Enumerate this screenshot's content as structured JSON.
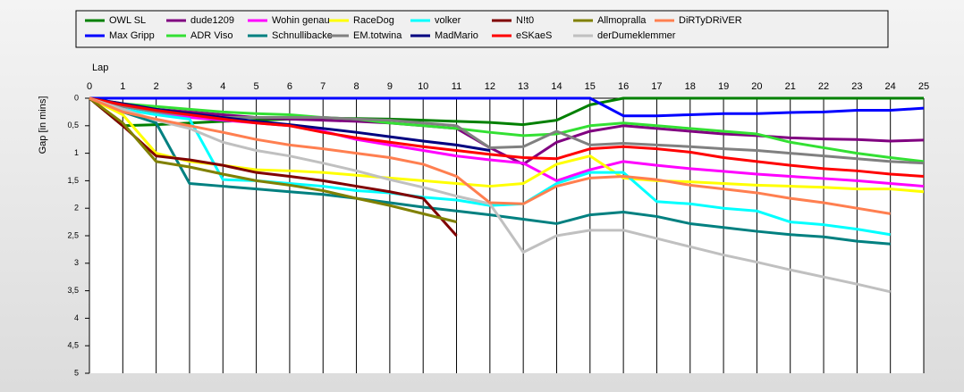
{
  "chart_data": {
    "type": "line",
    "xlabel": "Lap",
    "ylabel": "Gap [in mins]",
    "x": [
      0,
      1,
      2,
      3,
      4,
      5,
      6,
      7,
      8,
      9,
      10,
      11,
      12,
      13,
      14,
      15,
      16,
      17,
      18,
      19,
      20,
      21,
      22,
      23,
      24,
      25
    ],
    "xlim": [
      0,
      25
    ],
    "xticks": [
      0,
      1,
      2,
      3,
      4,
      5,
      6,
      7,
      8,
      9,
      10,
      11,
      12,
      13,
      14,
      15,
      16,
      17,
      18,
      19,
      20,
      21,
      22,
      23,
      24,
      25
    ],
    "ylim": [
      0,
      5
    ],
    "y_inverted": true,
    "yticks": [
      0,
      {
        "value": 0.5,
        "label": "0,5"
      },
      1,
      {
        "value": 1.5,
        "label": "1,5"
      },
      2,
      {
        "value": 2.5,
        "label": "2,5"
      },
      3,
      {
        "value": 3.5,
        "label": "3,5"
      },
      4,
      {
        "value": 4.5,
        "label": "4,5"
      },
      5
    ],
    "grid": true,
    "legend": "top",
    "series": [
      {
        "name": "OWL SL",
        "color": "#008000",
        "values": [
          0,
          0.5,
          0.48,
          0.45,
          0.42,
          0.4,
          0.38,
          0.36,
          0.37,
          0.38,
          0.4,
          0.42,
          0.44,
          0.48,
          0.4,
          0.12,
          0,
          0,
          0,
          0,
          0,
          0,
          0,
          0,
          0,
          0
        ]
      },
      {
        "name": "Max Gripp",
        "color": "#0000ff",
        "values": [
          0,
          0,
          0,
          0,
          0,
          0,
          0,
          0,
          0,
          0,
          0,
          0,
          0,
          0,
          0,
          0,
          0.32,
          0.32,
          0.3,
          0.28,
          0.28,
          0.26,
          0.25,
          0.22,
          0.22,
          0.18
        ]
      },
      {
        "name": "dude1209",
        "color": "#800080",
        "values": [
          0,
          0.12,
          0.2,
          0.25,
          0.3,
          0.35,
          0.38,
          0.4,
          0.42,
          0.45,
          0.5,
          0.55,
          0.9,
          1.2,
          0.8,
          0.6,
          0.5,
          0.55,
          0.6,
          0.65,
          0.68,
          0.72,
          0.74,
          0.75,
          0.78,
          0.76
        ]
      },
      {
        "name": "ADR Viso",
        "color": "#33e033",
        "values": [
          0,
          0.1,
          0.15,
          0.2,
          0.25,
          0.28,
          0.3,
          0.35,
          0.38,
          0.45,
          0.5,
          0.55,
          0.62,
          0.68,
          0.65,
          0.5,
          0.45,
          0.5,
          0.55,
          0.6,
          0.65,
          0.8,
          0.9,
          1.0,
          1.08,
          1.15
        ]
      },
      {
        "name": "Wohin genau",
        "color": "#ff00ff",
        "values": [
          0,
          0.15,
          0.25,
          0.35,
          0.4,
          0.45,
          0.5,
          0.6,
          0.75,
          0.85,
          0.95,
          1.05,
          1.12,
          1.18,
          1.5,
          1.3,
          1.15,
          1.22,
          1.28,
          1.33,
          1.38,
          1.42,
          1.46,
          1.5,
          1.55,
          1.6
        ]
      },
      {
        "name": "Schnullibacke",
        "color": "#008080",
        "values": [
          0,
          0.25,
          0.45,
          1.55,
          1.6,
          1.65,
          1.7,
          1.75,
          1.82,
          1.9,
          1.98,
          2.05,
          2.12,
          2.2,
          2.28,
          2.12,
          2.07,
          2.15,
          2.28,
          2.35,
          2.42,
          2.48,
          2.52,
          2.6,
          2.65,
          null
        ]
      },
      {
        "name": "RaceDog",
        "color": "#ffff00",
        "values": [
          0,
          0.3,
          1.0,
          1.15,
          1.22,
          1.3,
          1.32,
          1.35,
          1.4,
          1.45,
          1.5,
          1.55,
          1.6,
          1.55,
          1.2,
          1.05,
          1.45,
          1.5,
          1.52,
          1.55,
          1.58,
          1.6,
          1.62,
          1.65,
          1.65,
          1.7
        ]
      },
      {
        "name": "EM.totwina",
        "color": "#808080",
        "values": [
          0,
          0.15,
          0.25,
          0.3,
          0.35,
          0.35,
          0.35,
          0.35,
          0.38,
          0.4,
          0.45,
          0.5,
          0.9,
          0.88,
          0.6,
          0.85,
          0.82,
          0.85,
          0.88,
          0.92,
          0.95,
          1.0,
          1.05,
          1.1,
          1.15,
          1.18
        ]
      },
      {
        "name": "volker",
        "color": "#00ffff",
        "values": [
          0,
          0.2,
          0.3,
          0.38,
          1.48,
          1.5,
          1.55,
          1.6,
          1.68,
          1.72,
          1.8,
          1.85,
          1.95,
          1.92,
          1.55,
          1.35,
          1.35,
          1.88,
          1.92,
          2.0,
          2.05,
          2.25,
          2.3,
          2.38,
          2.48,
          null
        ]
      },
      {
        "name": "MadMario",
        "color": "#000080",
        "values": [
          0,
          0.1,
          0.2,
          0.28,
          0.35,
          0.42,
          0.48,
          0.55,
          0.62,
          0.7,
          0.78,
          0.85,
          0.95,
          null,
          null,
          null,
          null,
          null,
          null,
          null,
          null,
          null,
          null,
          null,
          null,
          null
        ]
      },
      {
        "name": "N!t0",
        "color": "#800000",
        "values": [
          0,
          0.5,
          1.05,
          1.12,
          1.22,
          1.35,
          1.42,
          1.5,
          1.6,
          1.7,
          1.82,
          2.5,
          null,
          null,
          null,
          null,
          null,
          null,
          null,
          null,
          null,
          null,
          null,
          null,
          null,
          null
        ]
      },
      {
        "name": "eSKaeS",
        "color": "#ff0000",
        "values": [
          0,
          0.12,
          0.22,
          0.3,
          0.38,
          0.45,
          0.5,
          0.62,
          0.72,
          0.8,
          0.88,
          0.95,
          1.02,
          1.08,
          1.1,
          0.92,
          0.88,
          0.92,
          0.98,
          1.08,
          1.15,
          1.22,
          1.28,
          1.32,
          1.38,
          1.42
        ]
      },
      {
        "name": "Allmopralla",
        "color": "#808000",
        "values": [
          0,
          0.45,
          1.15,
          1.25,
          1.38,
          1.5,
          1.58,
          1.68,
          1.82,
          1.95,
          2.1,
          2.25,
          null,
          null,
          null,
          null,
          null,
          null,
          null,
          null,
          null,
          null,
          null,
          null,
          null,
          null
        ]
      },
      {
        "name": "derDumeklemmer",
        "color": "#c0c0c0",
        "values": [
          0,
          0.2,
          0.4,
          0.55,
          0.8,
          0.95,
          1.05,
          1.18,
          1.32,
          1.48,
          1.62,
          1.78,
          1.92,
          2.8,
          2.5,
          2.4,
          2.4,
          2.55,
          2.7,
          2.85,
          2.98,
          3.12,
          3.25,
          3.38,
          3.52,
          null
        ]
      },
      {
        "name": "DiRTyDRiVER",
        "color": "#ff7f50",
        "values": [
          0,
          0.25,
          0.38,
          0.5,
          0.62,
          0.75,
          0.85,
          0.92,
          1.0,
          1.08,
          1.2,
          1.42,
          1.9,
          1.92,
          1.6,
          1.45,
          1.42,
          1.48,
          1.58,
          1.65,
          1.72,
          1.82,
          1.9,
          2.0,
          2.1,
          null
        ]
      }
    ]
  }
}
